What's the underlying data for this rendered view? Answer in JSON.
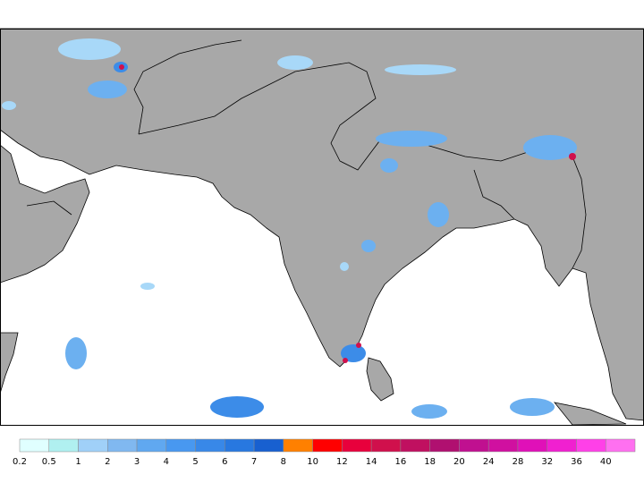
{
  "legend": {
    "levels": [
      0.2,
      0.5,
      1,
      2,
      3,
      4,
      5,
      6,
      7,
      8,
      10,
      12,
      14,
      16,
      18,
      20,
      24,
      28,
      32,
      36,
      40
    ],
    "colors": [
      "#e0ffff",
      "#b0f0f0",
      "#a0d0f8",
      "#80b8f0",
      "#60a8f0",
      "#4898f0",
      "#3888e8",
      "#2878e0",
      "#1860d0",
      "#ff8000",
      "#ff0000",
      "#e8003c",
      "#d0104c",
      "#c01060",
      "#b01070",
      "#c01090",
      "#d010a0",
      "#e010b8",
      "#f020d0",
      "#ff40e8",
      "#ff70f0"
    ]
  }
}
